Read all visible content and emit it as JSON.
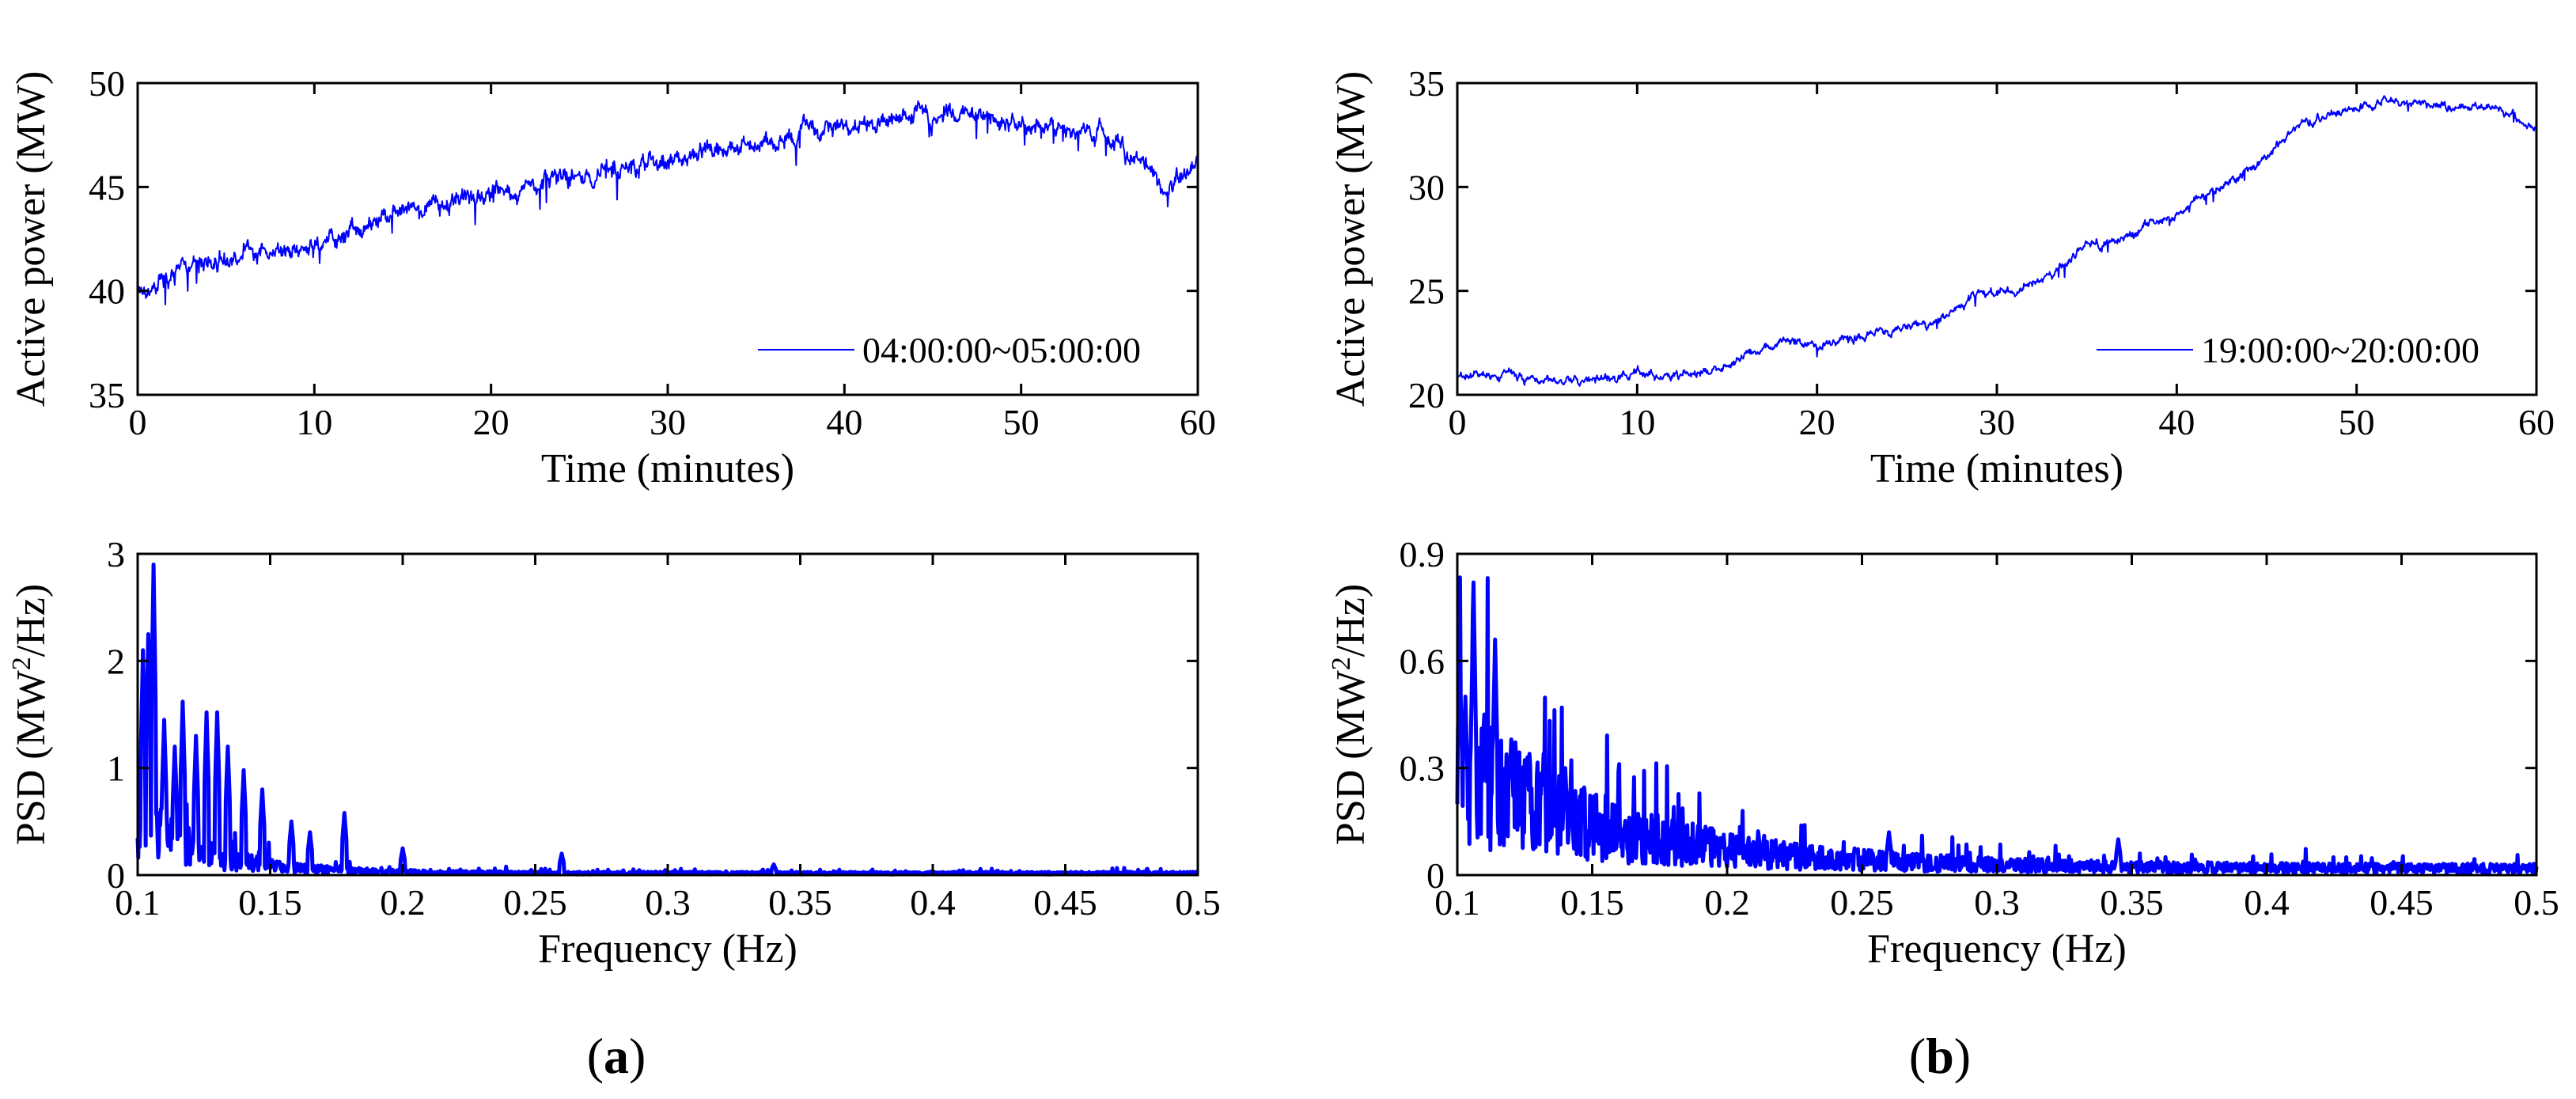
{
  "chart_data": [
    {
      "id": "a-top",
      "type": "line",
      "xlabel": "Time (minutes)",
      "ylabel": "Active power (MW)",
      "xlim": [
        0,
        60
      ],
      "ylim": [
        35,
        50
      ],
      "xticks": [
        0,
        10,
        20,
        30,
        40,
        50,
        60
      ],
      "yticks": [
        35,
        40,
        45,
        50
      ],
      "legend": "04:00:00~05:00:00",
      "legend_position": "bottom-right",
      "series_color": "#0000ff",
      "trend": [
        [
          0,
          40.2
        ],
        [
          3,
          41.0
        ],
        [
          6,
          41.8
        ],
        [
          10,
          42.0
        ],
        [
          13,
          43.3
        ],
        [
          17,
          44.3
        ],
        [
          20,
          44.6
        ],
        [
          23,
          45.2
        ],
        [
          26,
          45.8
        ],
        [
          30,
          46.3
        ],
        [
          33,
          46.8
        ],
        [
          36,
          47.4
        ],
        [
          40,
          47.8
        ],
        [
          43,
          48.3
        ],
        [
          46,
          48.5
        ],
        [
          50,
          48.2
        ],
        [
          53,
          47.7
        ],
        [
          55,
          47.3
        ],
        [
          57,
          46.2
        ],
        [
          58,
          44.8
        ],
        [
          59,
          45.6
        ],
        [
          60,
          46.2
        ]
      ],
      "noise": 0.55
    },
    {
      "id": "a-bottom",
      "type": "line",
      "xlabel": "Frequency (Hz)",
      "ylabel": "PSD (MW²/Hz)",
      "ylabel_base": "PSD (MW",
      "ylabel_sup": "2",
      "ylabel_tail": "/Hz)",
      "xlim": [
        0.1,
        0.5
      ],
      "ylim": [
        0,
        3
      ],
      "xticks": [
        0.1,
        0.15,
        0.2,
        0.25,
        0.3,
        0.35,
        0.4,
        0.45,
        0.5
      ],
      "yticks": [
        0,
        1,
        2,
        3
      ],
      "series_color": "#0000ff",
      "decay_amp": 0.55,
      "decay_rate": 38,
      "floor": 0.02,
      "peaks": [
        [
          0.102,
          2.1
        ],
        [
          0.104,
          2.25
        ],
        [
          0.106,
          2.9
        ],
        [
          0.11,
          1.45
        ],
        [
          0.114,
          1.2
        ],
        [
          0.117,
          1.62
        ],
        [
          0.122,
          1.3
        ],
        [
          0.126,
          1.52
        ],
        [
          0.13,
          1.52
        ],
        [
          0.134,
          1.2
        ],
        [
          0.14,
          0.98
        ],
        [
          0.147,
          0.8
        ],
        [
          0.158,
          0.5
        ],
        [
          0.165,
          0.4
        ],
        [
          0.178,
          0.58
        ],
        [
          0.2,
          0.25
        ],
        [
          0.26,
          0.2
        ],
        [
          0.34,
          0.1
        ]
      ]
    },
    {
      "id": "b-top",
      "type": "line",
      "xlabel": "Time (minutes)",
      "ylabel": "Active power (MW)",
      "xlim": [
        0,
        60
      ],
      "ylim": [
        20,
        35
      ],
      "xticks": [
        0,
        10,
        20,
        30,
        40,
        50,
        60
      ],
      "yticks": [
        20,
        25,
        30,
        35
      ],
      "legend": "19:00:00~20:00:00",
      "legend_position": "bottom-right",
      "series_color": "#0000ff",
      "trend": [
        [
          0,
          21.0
        ],
        [
          3,
          21.0
        ],
        [
          5,
          20.6
        ],
        [
          8,
          20.7
        ],
        [
          10,
          21.0
        ],
        [
          12,
          20.8
        ],
        [
          15,
          21.4
        ],
        [
          18,
          22.6
        ],
        [
          20,
          22.4
        ],
        [
          22,
          22.8
        ],
        [
          25,
          23.2
        ],
        [
          27,
          23.6
        ],
        [
          29,
          25.0
        ],
        [
          31,
          25.0
        ],
        [
          33,
          25.8
        ],
        [
          35,
          27.2
        ],
        [
          37,
          27.5
        ],
        [
          40,
          28.8
        ],
        [
          43,
          30.2
        ],
        [
          45,
          31.5
        ],
        [
          47,
          33.0
        ],
        [
          50,
          33.8
        ],
        [
          52,
          34.2
        ],
        [
          55,
          33.8
        ],
        [
          58,
          33.8
        ],
        [
          60,
          32.8
        ]
      ],
      "noise": 0.25
    },
    {
      "id": "b-bottom",
      "type": "line",
      "xlabel": "Frequency (Hz)",
      "ylabel": "PSD (MW²/Hz)",
      "ylabel_base": "PSD (MW",
      "ylabel_sup": "2",
      "ylabel_tail": "/Hz)",
      "xlim": [
        0.1,
        0.5
      ],
      "ylim": [
        0,
        0.9
      ],
      "xticks": [
        0.1,
        0.15,
        0.2,
        0.25,
        0.3,
        0.35,
        0.4,
        0.45,
        0.5
      ],
      "yticks": [
        0,
        0.3,
        0.6,
        0.9
      ],
      "series_color": "#0000ff",
      "decay_amp": 0.3,
      "decay_rate": 16,
      "floor": 0.02,
      "peaks": [
        [
          0.101,
          0.58
        ],
        [
          0.103,
          0.5
        ],
        [
          0.106,
          0.82
        ],
        [
          0.11,
          0.45
        ],
        [
          0.114,
          0.66
        ],
        [
          0.12,
          0.38
        ],
        [
          0.126,
          0.33
        ],
        [
          0.132,
          0.34
        ],
        [
          0.14,
          0.3
        ],
        [
          0.26,
          0.12
        ],
        [
          0.345,
          0.1
        ]
      ]
    }
  ],
  "panel_labels": [
    "(a)",
    "(b)"
  ]
}
